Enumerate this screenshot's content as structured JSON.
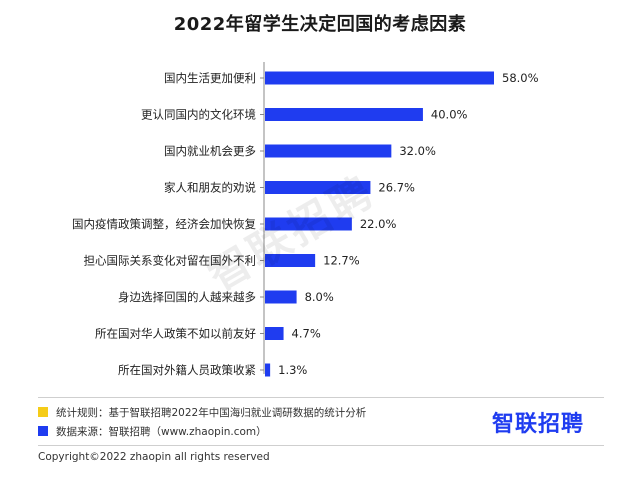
{
  "chart_data": {
    "type": "bar",
    "orientation": "horizontal",
    "title": "2022年留学生决定回国的考虑因素",
    "categories": [
      "国内生活更加便利",
      "更认同国内的文化环境",
      "国内就业机会更多",
      "家人和朋友的劝说",
      "国内疫情政策调整，经济会加快恢复",
      "担心国际关系变化对留在国外不利",
      "身边选择回国的人越来越多",
      "所在国对华人政策不如以前友好",
      "所在国对外籍人员政策收紧"
    ],
    "values": [
      58.0,
      40.0,
      32.0,
      26.7,
      22.0,
      12.7,
      8.0,
      4.7,
      1.3
    ],
    "value_labels": [
      "58.0%",
      "40.0%",
      "32.0%",
      "26.7%",
      "22.0%",
      "12.7%",
      "8.0%",
      "4.7%",
      "1.3%"
    ],
    "xlim": [
      0,
      58.0
    ],
    "grid": false,
    "bar_color": "#1f3cf0"
  },
  "watermark": "智联招聘",
  "notes": [
    {
      "color": "#f5cc18",
      "text": "统计规则：基于智联招聘2022年中国海归就业调研数据的统计分析"
    },
    {
      "color": "#1f3cf0",
      "text": "数据来源：智联招聘（www.zhaopin.com）"
    }
  ],
  "logo_text": "智联招聘",
  "copyright": "Copyright©2022 zhaopin all rights reserved"
}
